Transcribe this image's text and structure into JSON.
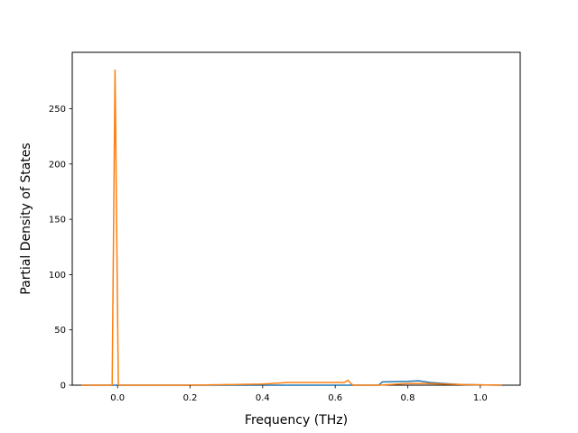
{
  "chart_data": {
    "type": "line",
    "title": "",
    "xlabel": "Frequency (THz)",
    "ylabel": "Partial Density of States",
    "xlim": [
      -0.125,
      1.11
    ],
    "ylim": [
      0,
      301
    ],
    "x_ticks": [
      0.0,
      0.2,
      0.4,
      0.6,
      0.8,
      1.0
    ],
    "x_tick_labels": [
      "0.0",
      "0.2",
      "0.4",
      "0.6",
      "0.8",
      "1.0"
    ],
    "y_ticks": [
      0,
      50,
      100,
      150,
      200,
      250
    ],
    "y_tick_labels": [
      "0",
      "50",
      "100",
      "150",
      "200",
      "250"
    ],
    "grid": false,
    "legend": "none",
    "series": [
      {
        "color": "#1f77b4",
        "x": [
          -0.1,
          -0.01,
          -0.005,
          0.0,
          0.2,
          0.4,
          0.6,
          0.62,
          0.72,
          0.73,
          0.8,
          0.83,
          0.86,
          0.9,
          0.95,
          1.06
        ],
        "y": [
          0,
          0,
          0,
          0,
          0,
          0,
          0,
          0,
          0,
          3,
          3.5,
          4,
          2.5,
          1.5,
          0.5,
          0
        ]
      },
      {
        "color": "#ff7f0e",
        "x": [
          -0.1,
          -0.015,
          -0.007,
          0.002,
          0.2,
          0.3,
          0.4,
          0.47,
          0.6,
          0.625,
          0.635,
          0.645,
          0.65,
          0.72,
          0.8,
          0.85,
          0.9,
          0.95,
          1.06
        ],
        "y": [
          0,
          0,
          285,
          0,
          0,
          0.5,
          1,
          2.5,
          2.5,
          2.5,
          4.5,
          1,
          0,
          0,
          1.5,
          1.5,
          1,
          0.5,
          0
        ]
      }
    ]
  }
}
